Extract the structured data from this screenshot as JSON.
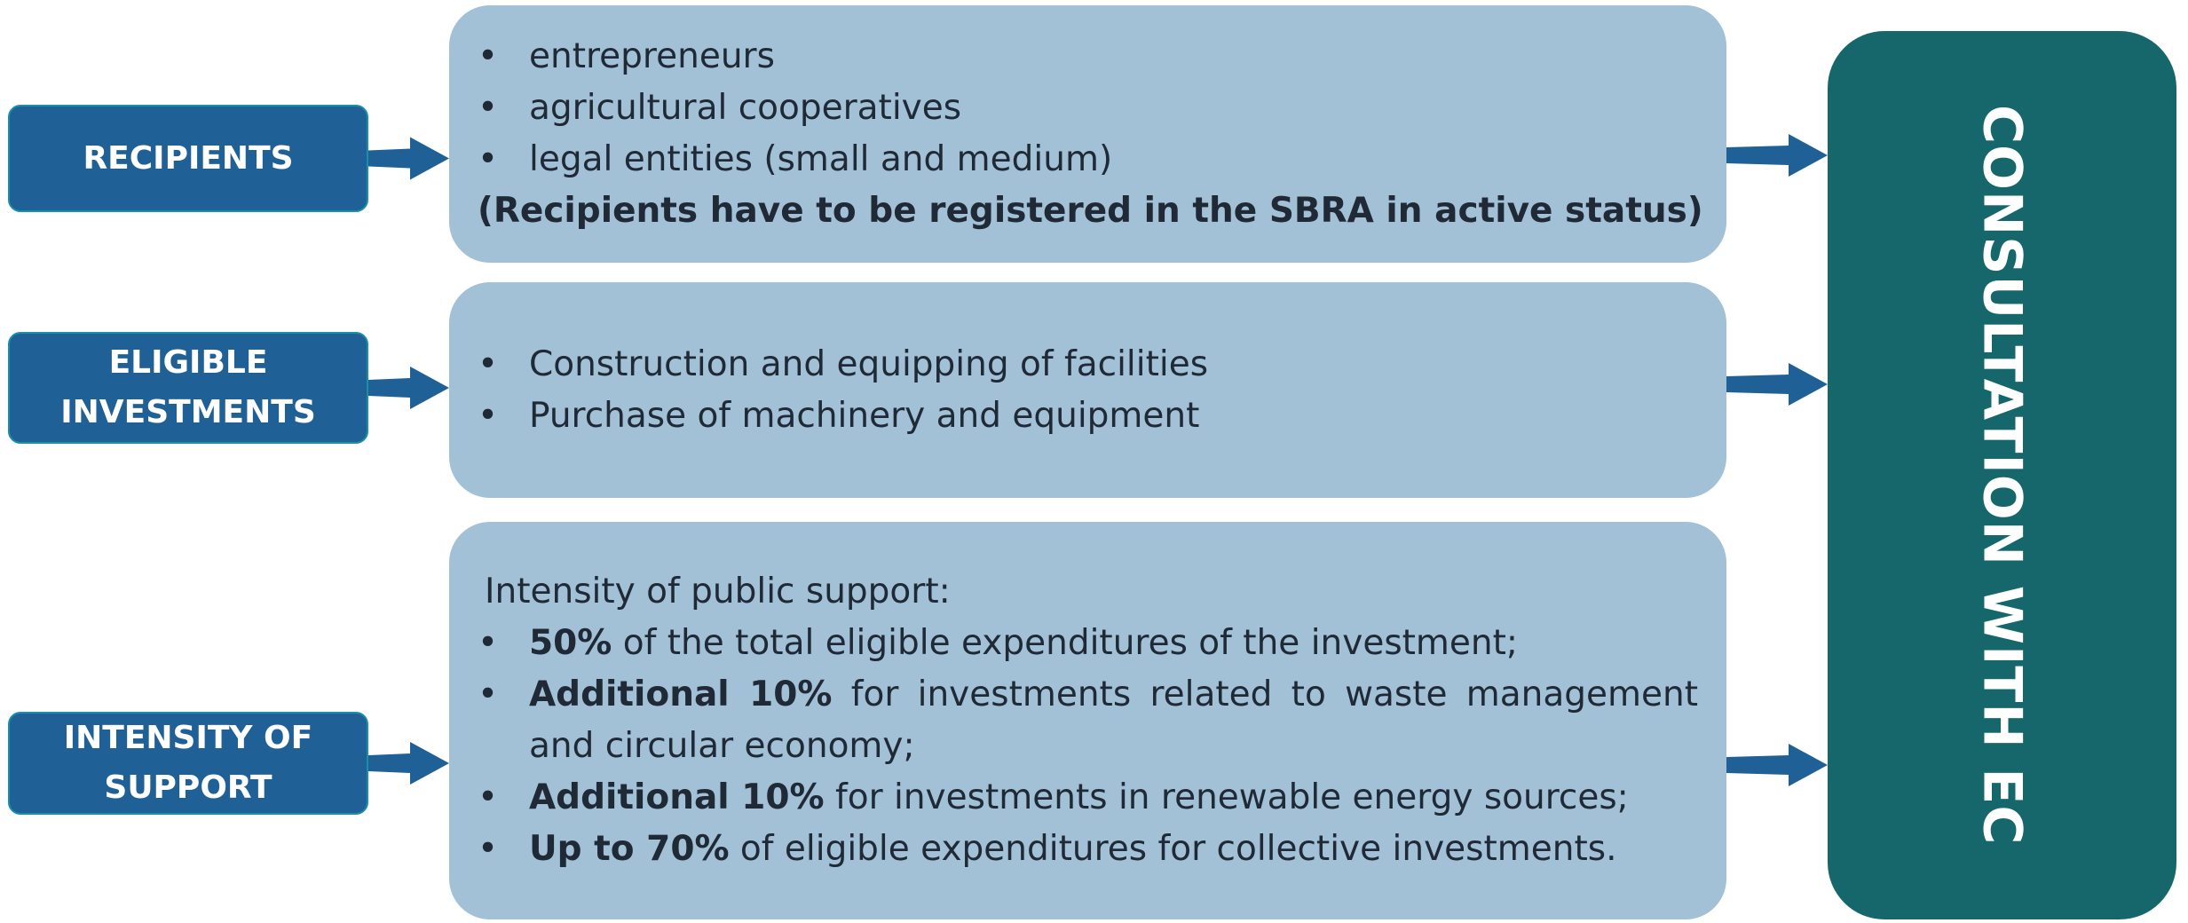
{
  "rows": [
    {
      "label": "RECIPIENTS",
      "items": [
        "entrepreneurs",
        "agricultural cooperatives",
        "legal entities (small and medium)"
      ],
      "note": "(Recipients have to be registered in the SBRA in active status)"
    },
    {
      "label": "ELIGIBLE INVESTMENTS",
      "items": [
        "Construction and equipping of facilities",
        "Purchase of machinery and equipment"
      ]
    },
    {
      "label": "INTENSITY OF SUPPORT",
      "intro": "Intensity of public support:",
      "items": [
        {
          "bold": "50%",
          "rest": " of the total eligible expenditures of the investment;"
        },
        {
          "bold": "Additional 10%",
          "rest": " for investments related to waste management and circular economy;"
        },
        {
          "bold": "Additional 10%",
          "rest": " for investments in renewable energy sources;"
        },
        {
          "bold": "Up to 70%",
          "rest": " of eligible expenditures for collective investments."
        }
      ]
    }
  ],
  "side": "CONSULTATION WITH EC"
}
